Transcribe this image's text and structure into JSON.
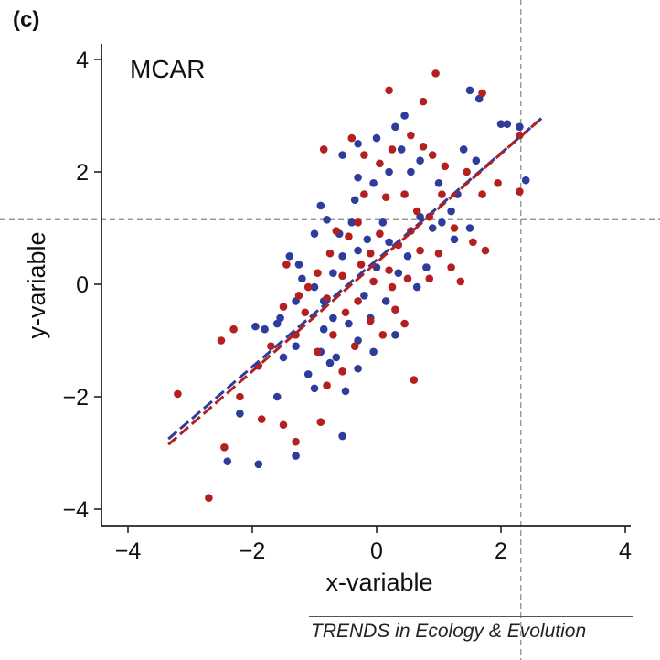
{
  "panel_label": "(c)",
  "footer": "TRENDS in Ecology & Evolution",
  "colors": {
    "observed": "#2e3d9c",
    "missing": "#b3201f",
    "axis": "#222222",
    "guide": "#888888"
  },
  "chart_data": {
    "type": "scatter",
    "annotation": "MCAR",
    "xlabel": "x-variable",
    "ylabel": "y-variable",
    "xlim": [
      -4.5,
      4.1
    ],
    "ylim": [
      -4.4,
      4.3
    ],
    "xticks": [
      -4,
      -2,
      0,
      2,
      4
    ],
    "yticks": [
      -4,
      -2,
      0,
      2,
      4
    ],
    "guides": {
      "x": 2.32,
      "y": 1.15
    },
    "series": [
      {
        "name": "blue",
        "color": "#2e3d9c",
        "points": [
          [
            -2.4,
            -3.15
          ],
          [
            -1.9,
            -3.2
          ],
          [
            -1.3,
            -3.05
          ],
          [
            -0.55,
            -2.7
          ],
          [
            -2.2,
            -2.3
          ],
          [
            -1.6,
            -2.0
          ],
          [
            -1.0,
            -1.85
          ],
          [
            -0.5,
            -1.9
          ],
          [
            -0.9,
            -1.2
          ],
          [
            -1.5,
            -1.3
          ],
          [
            -1.8,
            -0.8
          ],
          [
            -1.95,
            -0.75
          ],
          [
            -1.55,
            -0.6
          ],
          [
            -1.3,
            -0.3
          ],
          [
            -1.2,
            0.1
          ],
          [
            -1.25,
            0.35
          ],
          [
            -1.0,
            -0.05
          ],
          [
            -0.85,
            -0.3
          ],
          [
            -0.7,
            0.2
          ],
          [
            -0.55,
            0.5
          ],
          [
            -0.6,
            0.9
          ],
          [
            -0.4,
            1.1
          ],
          [
            -0.3,
            0.6
          ],
          [
            -0.15,
            0.8
          ],
          [
            0.1,
            1.1
          ],
          [
            0.2,
            0.75
          ],
          [
            0.35,
            0.2
          ],
          [
            0.5,
            0.5
          ],
          [
            0.65,
            -0.05
          ],
          [
            0.8,
            0.3
          ],
          [
            0.7,
            1.2
          ],
          [
            0.9,
            1.0
          ],
          [
            1.05,
            1.1
          ],
          [
            1.2,
            1.3
          ],
          [
            1.0,
            1.8
          ],
          [
            0.7,
            2.2
          ],
          [
            0.55,
            2.0
          ],
          [
            0.4,
            2.4
          ],
          [
            0.2,
            2.0
          ],
          [
            -0.05,
            1.8
          ],
          [
            -0.3,
            1.9
          ],
          [
            -0.55,
            2.3
          ],
          [
            -0.3,
            2.5
          ],
          [
            0.0,
            2.6
          ],
          [
            0.3,
            2.8
          ],
          [
            0.45,
            3.0
          ],
          [
            1.5,
            3.45
          ],
          [
            1.65,
            3.3
          ],
          [
            2.0,
            2.85
          ],
          [
            2.1,
            2.85
          ],
          [
            2.3,
            2.8
          ],
          [
            2.4,
            1.85
          ],
          [
            1.6,
            2.2
          ],
          [
            1.4,
            2.4
          ],
          [
            1.3,
            1.6
          ],
          [
            1.5,
            1.0
          ],
          [
            1.25,
            0.8
          ],
          [
            -0.1,
            -0.6
          ],
          [
            -0.3,
            -1.0
          ],
          [
            -0.45,
            -0.7
          ],
          [
            -0.2,
            -0.2
          ],
          [
            0.0,
            0.3
          ],
          [
            0.15,
            -0.3
          ],
          [
            -0.65,
            -1.3
          ],
          [
            -0.85,
            -0.8
          ],
          [
            -1.1,
            -1.6
          ],
          [
            -1.3,
            -1.1
          ],
          [
            -0.75,
            -1.4
          ],
          [
            -0.3,
            -1.5
          ],
          [
            -0.05,
            -1.2
          ],
          [
            0.3,
            -0.9
          ],
          [
            -1.6,
            -0.7
          ],
          [
            -1.4,
            0.5
          ],
          [
            -1.0,
            0.9
          ],
          [
            -0.8,
            1.15
          ],
          [
            -0.9,
            1.4
          ],
          [
            -0.35,
            1.5
          ],
          [
            -0.7,
            -0.6
          ]
        ]
      },
      {
        "name": "red",
        "color": "#b3201f",
        "points": [
          [
            -2.7,
            -3.8
          ],
          [
            -3.2,
            -1.95
          ],
          [
            -2.45,
            -2.9
          ],
          [
            -2.2,
            -2.0
          ],
          [
            -1.85,
            -2.4
          ],
          [
            -1.5,
            -2.5
          ],
          [
            -1.3,
            -2.8
          ],
          [
            -0.9,
            -2.45
          ],
          [
            -0.8,
            -1.8
          ],
          [
            -2.5,
            -1.0
          ],
          [
            -2.3,
            -0.8
          ],
          [
            -1.9,
            -1.45
          ],
          [
            -1.7,
            -1.1
          ],
          [
            -1.5,
            -0.4
          ],
          [
            -1.45,
            0.35
          ],
          [
            -1.3,
            -0.9
          ],
          [
            -1.15,
            -0.5
          ],
          [
            -0.95,
            0.2
          ],
          [
            -0.8,
            -0.25
          ],
          [
            -0.75,
            0.55
          ],
          [
            -0.55,
            0.15
          ],
          [
            -0.45,
            0.85
          ],
          [
            -0.25,
            0.35
          ],
          [
            -0.1,
            0.55
          ],
          [
            0.05,
            0.9
          ],
          [
            0.2,
            0.25
          ],
          [
            0.35,
            0.7
          ],
          [
            0.55,
            0.95
          ],
          [
            0.7,
            0.6
          ],
          [
            0.85,
            1.2
          ],
          [
            1.0,
            0.55
          ],
          [
            1.2,
            0.3
          ],
          [
            1.35,
            0.05
          ],
          [
            1.55,
            0.75
          ],
          [
            1.75,
            0.6
          ],
          [
            1.7,
            1.6
          ],
          [
            1.45,
            2.0
          ],
          [
            1.1,
            2.1
          ],
          [
            0.9,
            2.3
          ],
          [
            0.75,
            2.45
          ],
          [
            0.55,
            2.65
          ],
          [
            0.25,
            2.4
          ],
          [
            0.05,
            2.15
          ],
          [
            -0.2,
            2.3
          ],
          [
            -0.4,
            2.6
          ],
          [
            -0.2,
            1.6
          ],
          [
            0.15,
            1.55
          ],
          [
            0.45,
            1.6
          ],
          [
            0.65,
            1.3
          ],
          [
            0.95,
            3.75
          ],
          [
            0.75,
            3.25
          ],
          [
            1.7,
            3.4
          ],
          [
            0.2,
            3.45
          ],
          [
            1.95,
            1.8
          ],
          [
            2.3,
            1.65
          ],
          [
            2.3,
            2.65
          ],
          [
            -0.85,
            2.4
          ],
          [
            -0.95,
            -1.2
          ],
          [
            -0.7,
            -0.9
          ],
          [
            -0.5,
            -0.5
          ],
          [
            -0.3,
            -0.3
          ],
          [
            -0.1,
            -0.65
          ],
          [
            0.1,
            -0.9
          ],
          [
            0.3,
            -0.45
          ],
          [
            0.45,
            -0.7
          ],
          [
            -0.35,
            -1.1
          ],
          [
            -0.55,
            -1.55
          ],
          [
            0.6,
            -1.7
          ],
          [
            -1.1,
            -0.05
          ],
          [
            -1.25,
            -0.2
          ],
          [
            -0.65,
            0.95
          ],
          [
            -0.3,
            1.1
          ],
          [
            1.05,
            1.6
          ],
          [
            1.25,
            1.0
          ],
          [
            0.5,
            0.1
          ],
          [
            0.25,
            -0.05
          ],
          [
            0.85,
            0.1
          ],
          [
            -0.05,
            0.05
          ]
        ]
      }
    ],
    "fits": [
      {
        "name": "blue-fit",
        "color": "#2e3d9c",
        "x": [
          -3.35,
          2.65
        ],
        "y": [
          -2.75,
          2.95
        ]
      },
      {
        "name": "red-fit",
        "color": "#b3201f",
        "x": [
          -3.35,
          2.65
        ],
        "y": [
          -2.85,
          2.95
        ]
      }
    ]
  }
}
